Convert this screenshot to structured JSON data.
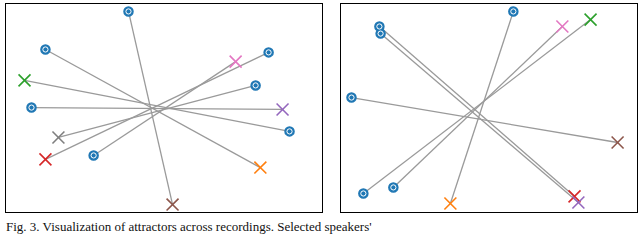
{
  "caption": "Fig. 3.   Visualization of attractors across recordings. Selected speakers'",
  "chart_data": [
    {
      "type": "scatter",
      "xlim": [
        0,
        100
      ],
      "ylim": [
        0,
        100
      ],
      "tick_labels": false,
      "series": [
        {
          "color": "#1f77b4",
          "marker": "circle",
          "x": [
            38.8,
            12.6,
            83.0,
            8.2,
            78.9,
            89.6,
            27.8
          ],
          "y": [
            96.2,
            78.0,
            76.6,
            50.2,
            60.8,
            38.8,
            27.3
          ]
        },
        {
          "marker": "x",
          "colors": [
            "#8c564b",
            "#ff7f0e",
            "#d62728",
            "#9467bd",
            "#7f7f7f",
            "#2ca02c",
            "#e377c2"
          ],
          "x": [
            52.7,
            80.4,
            12.6,
            87.4,
            16.7,
            6.0,
            72.6
          ],
          "y": [
            3.8,
            21.5,
            25.4,
            49.3,
            35.9,
            63.2,
            72.2
          ]
        }
      ]
    },
    {
      "type": "scatter",
      "xlim": [
        0,
        100
      ],
      "ylim": [
        0,
        100
      ],
      "tick_labels": false,
      "series": [
        {
          "color": "#1f77b4",
          "marker": "circle",
          "x": [
            13.1,
            13.5,
            3.7,
            7.7,
            17.8,
            58.2
          ],
          "y": [
            89.0,
            85.6,
            55.0,
            9.1,
            12.0,
            96.2
          ]
        },
        {
          "marker": "x",
          "colors": [
            "#d62728",
            "#9467bd",
            "#8c564b",
            "#2ca02c",
            "#e377c2",
            "#ff7f0e"
          ],
          "x": [
            78.8,
            80.1,
            93.3,
            84.2,
            74.7,
            37.0
          ],
          "y": [
            7.7,
            4.8,
            33.5,
            92.3,
            89.0,
            4.3
          ]
        }
      ]
    }
  ]
}
